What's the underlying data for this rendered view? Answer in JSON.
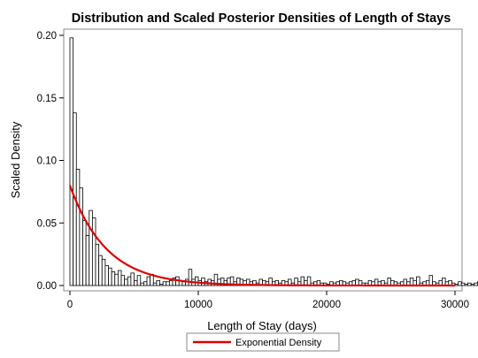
{
  "chart_data": {
    "type": "bar",
    "title": "Distribution and Scaled Posterior Densities of Length of Stays",
    "xlabel": "Length of Stay (days)",
    "ylabel": "Scaled Density",
    "xlim": [
      -300,
      30000
    ],
    "ylim": [
      0,
      0.2
    ],
    "xticks": [
      0,
      10000,
      20000,
      30000
    ],
    "xtick_labels": [
      "0",
      "10000",
      "20000",
      "30000"
    ],
    "yticks": [
      0,
      0.05,
      0.1,
      0.15,
      0.2
    ],
    "ytick_labels": [
      "0.00",
      "0.05",
      "0.10",
      "0.15",
      "0.20"
    ],
    "bin_width": 250,
    "bin_start": 0,
    "histogram_values": [
      0.198,
      0.138,
      0.093,
      0.078,
      0.052,
      0.04,
      0.06,
      0.054,
      0.033,
      0.024,
      0.021,
      0.016,
      0.014,
      0.011,
      0.009,
      0.012,
      0.008,
      0.005,
      0.007,
      0.01,
      0.004,
      0.008,
      0.002,
      0.003,
      0.007,
      0.009,
      0.002,
      0.004,
      0.001,
      0.003,
      0.003,
      0.004,
      0.006,
      0.007,
      0.004,
      0.003,
      0.005,
      0.013,
      0.005,
      0.007,
      0.004,
      0.006,
      0.003,
      0.005,
      0.004,
      0.009,
      0.005,
      0.006,
      0.004,
      0.006,
      0.007,
      0.003,
      0.006,
      0.005,
      0.004,
      0.005,
      0.003,
      0.004,
      0.002,
      0.005,
      0.004,
      0.003,
      0.006,
      0.003,
      0.004,
      0.002,
      0.004,
      0.003,
      0.005,
      0.002,
      0.006,
      0.003,
      0.007,
      0.004,
      0.007,
      0.002,
      0.003,
      0.004,
      0.002,
      0.002,
      0.001,
      0.003,
      0.002,
      0.003,
      0.004,
      0.003,
      0.002,
      0.003,
      0.004,
      0.005,
      0.004,
      0.002,
      0.002,
      0.004,
      0.003,
      0.005,
      0.003,
      0.004,
      0.002,
      0.006,
      0.004,
      0.003,
      0.002,
      0.003,
      0.005,
      0.003,
      0.006,
      0.004,
      0.007,
      0.002,
      0.003,
      0.004,
      0.008,
      0.003,
      0.002,
      0.004,
      0.006,
      0.003,
      0.004,
      0.002,
      0.001,
      0.003,
      0.002,
      0.001,
      0.002,
      0.001,
      0.002,
      0.003,
      0.001,
      0.002,
      0.004,
      0.002,
      0.005,
      0.004,
      0.003,
      0.002,
      0.003,
      0.001,
      0.002,
      0.001,
      0.001,
      0.001,
      0.002,
      0.001,
      0.001,
      0.003,
      0.001,
      0.002,
      0.001,
      0.002,
      0.003,
      0.001,
      0.004,
      0.001,
      0.002,
      0.001,
      0.001,
      0.004,
      0.001,
      0.002,
      0.001,
      0.002,
      0.001,
      0.001,
      0.002,
      0.001,
      0.002,
      0.001,
      0.001,
      0.001,
      0.003,
      0.002,
      0.005,
      0.002,
      0.001,
      0.002,
      0.001,
      0.001,
      0.002,
      0.001,
      0.002,
      0.001,
      0.001,
      0.002,
      0.001,
      0.001,
      0.002,
      0.001,
      0.001,
      0.001
    ],
    "series": [
      {
        "name": "Exponential Density",
        "color": "#dd0000",
        "y0": 0.08,
        "decay_rate": 0.000353,
        "x_range": [
          0,
          30000
        ]
      }
    ],
    "legend": {
      "position": "bottom-center"
    },
    "grid": false,
    "colors": {
      "bar_fill": "#ffffff",
      "bar_stroke": "#000000",
      "frame": "#888888",
      "curve": "#dd0000"
    }
  }
}
